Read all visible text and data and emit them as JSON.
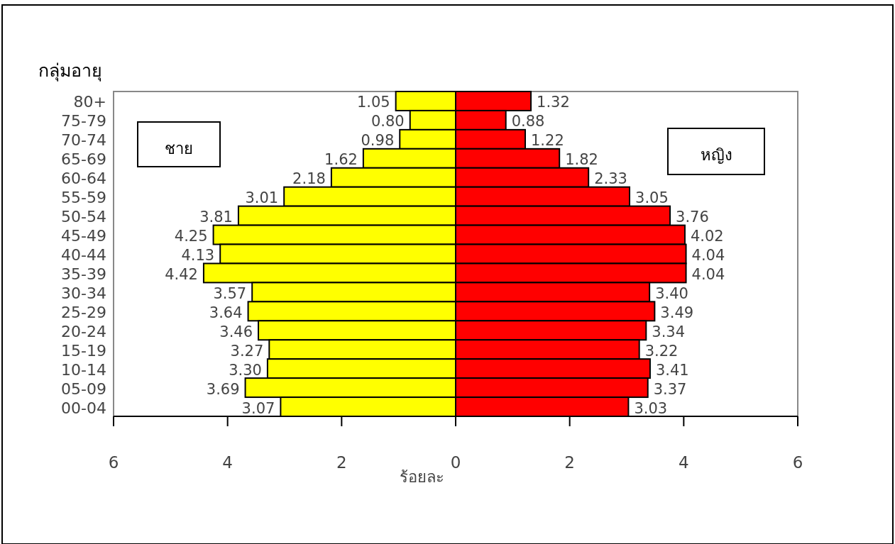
{
  "chart_data": {
    "type": "bar",
    "orientation": "horizontal",
    "ylabel": "กลุ่มอายุ",
    "xlabel": "ร้อยละ",
    "categories": [
      "80+",
      "75-79",
      "70-74",
      "65-69",
      "60-64",
      "55-59",
      "50-54",
      "45-49",
      "40-44",
      "35-39",
      "30-34",
      "25-29",
      "20-24",
      "15-19",
      "10-14",
      "05-09",
      "00-04"
    ],
    "series": [
      {
        "name": "ชาย",
        "color": "#ffff00",
        "values": [
          1.05,
          0.8,
          0.98,
          1.62,
          2.18,
          3.01,
          3.81,
          4.25,
          4.13,
          4.42,
          3.57,
          3.64,
          3.46,
          3.27,
          3.3,
          3.69,
          3.07
        ],
        "base": [
          -1.05,
          -0.8,
          -0.98,
          -1.62,
          -2.18,
          -3.01,
          -3.81,
          -4.25,
          -4.13,
          -4.42,
          -3.57,
          -3.64,
          -3.46,
          -3.27,
          -3.3,
          -3.69,
          -3.07
        ],
        "value_labels": [
          "1.05",
          "0.80",
          "0.98",
          "1.62",
          "2.18",
          "3.01",
          "3.81",
          "4.25",
          "4.13",
          "4.42",
          "3.57",
          "3.64",
          "3.46",
          "3.27",
          "3.30",
          "3.69",
          "3.07"
        ]
      },
      {
        "name": "หญิง",
        "color": "#ff0000",
        "values": [
          1.32,
          0.88,
          1.22,
          1.82,
          2.33,
          3.05,
          3.76,
          4.02,
          4.04,
          4.04,
          3.4,
          3.49,
          3.34,
          3.22,
          3.41,
          3.37,
          3.03
        ],
        "value_labels": [
          "1.32",
          "0.88",
          "1.22",
          "1.82",
          "2.33",
          "3.05",
          "3.76",
          "4.02",
          "4.04",
          "4.04",
          "3.40",
          "3.49",
          "3.34",
          "3.22",
          "3.41",
          "3.37",
          "3.03"
        ]
      }
    ],
    "xlim": [
      -6,
      6
    ],
    "xticks": [
      {
        "value": -6,
        "label": "6"
      },
      {
        "value": -4,
        "label": "4"
      },
      {
        "value": -2,
        "label": "2"
      },
      0,
      2,
      4,
      6
    ],
    "grid": false
  }
}
